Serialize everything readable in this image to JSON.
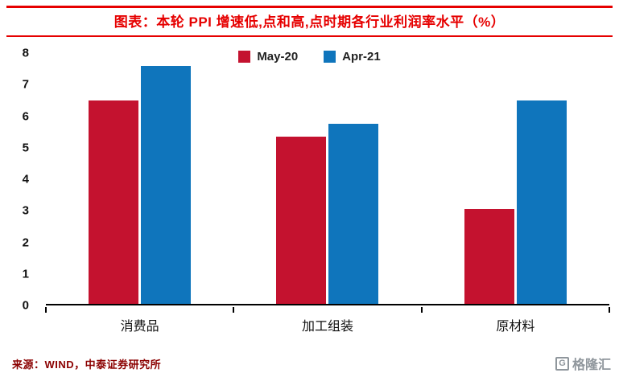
{
  "header": {
    "title": "图表：本轮 PPI 增速低,点和高,点时期各行业利润率水平（%）"
  },
  "chart_data": {
    "type": "bar",
    "title": "图表：本轮 PPI 增速低,点和高,点时期各行业利润率水平（%）",
    "categories": [
      "消费品",
      "加工组装",
      "原材料"
    ],
    "series": [
      {
        "name": "May-20",
        "color": "#c4122f",
        "values": [
          6.45,
          5.3,
          3.0
        ]
      },
      {
        "name": "Apr-21",
        "color": "#0f75bc",
        "values": [
          7.55,
          5.7,
          6.45
        ]
      }
    ],
    "ylim": [
      0,
      8
    ],
    "yticks": [
      0,
      1,
      2,
      3,
      4,
      5,
      6,
      7,
      8
    ],
    "xlabel": "",
    "ylabel": "",
    "grid": false,
    "legend_position": "top-center"
  },
  "footer": {
    "source": "来源：WIND，中泰证券研究所"
  },
  "logo": {
    "icon_letter": "G",
    "text": "格隆汇"
  },
  "colors": {
    "accent_red": "#e60000",
    "series_may20": "#c4122f",
    "series_apr21": "#0f75bc",
    "axis": "#000000",
    "source_text": "#8b0000",
    "logo_gray": "#8f969c"
  }
}
